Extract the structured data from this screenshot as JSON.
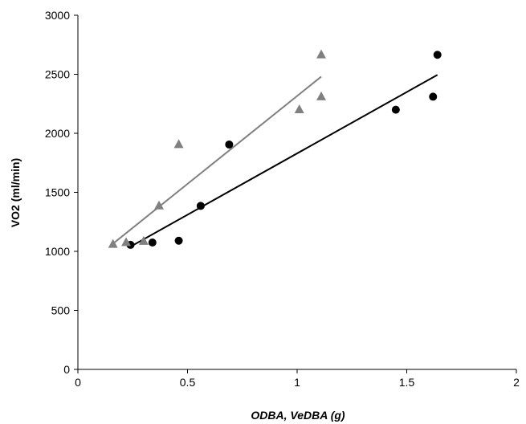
{
  "chart_data": {
    "type": "scatter",
    "title": "",
    "xlabel": "ODBA, VeDBA (g)",
    "ylabel": "VO2 (ml/min)",
    "xlim": [
      0,
      2
    ],
    "ylim": [
      0,
      3000
    ],
    "x_ticks": [
      0,
      0.5,
      1,
      1.5,
      2
    ],
    "x_tick_labels": [
      "0",
      "0.5",
      "1",
      "1.5",
      "2"
    ],
    "y_ticks": [
      0,
      500,
      1000,
      1500,
      2000,
      2500,
      3000
    ],
    "y_tick_labels": [
      "0",
      "500",
      "1000",
      "1500",
      "2000",
      "2500",
      "3000"
    ],
    "grid": false,
    "legend": "none",
    "series": [
      {
        "marker": "circle",
        "color": "#000000",
        "points": [
          {
            "x": 0.24,
            "y": 1055
          },
          {
            "x": 0.34,
            "y": 1075
          },
          {
            "x": 0.46,
            "y": 1090
          },
          {
            "x": 0.56,
            "y": 1385
          },
          {
            "x": 0.69,
            "y": 1905
          },
          {
            "x": 1.45,
            "y": 2200
          },
          {
            "x": 1.62,
            "y": 2310
          },
          {
            "x": 1.64,
            "y": 2665
          }
        ],
        "trendline": {
          "x": [
            0.24,
            1.64
          ],
          "y": [
            1040,
            2495
          ]
        }
      },
      {
        "marker": "triangle",
        "color": "#808080",
        "points": [
          {
            "x": 0.16,
            "y": 1060
          },
          {
            "x": 0.22,
            "y": 1075
          },
          {
            "x": 0.3,
            "y": 1085
          },
          {
            "x": 0.37,
            "y": 1385
          },
          {
            "x": 0.46,
            "y": 1905
          },
          {
            "x": 1.01,
            "y": 2200
          },
          {
            "x": 1.11,
            "y": 2310
          },
          {
            "x": 1.11,
            "y": 2665
          }
        ],
        "trendline": {
          "x": [
            0.16,
            1.11
          ],
          "y": [
            1065,
            2480
          ]
        }
      }
    ]
  }
}
